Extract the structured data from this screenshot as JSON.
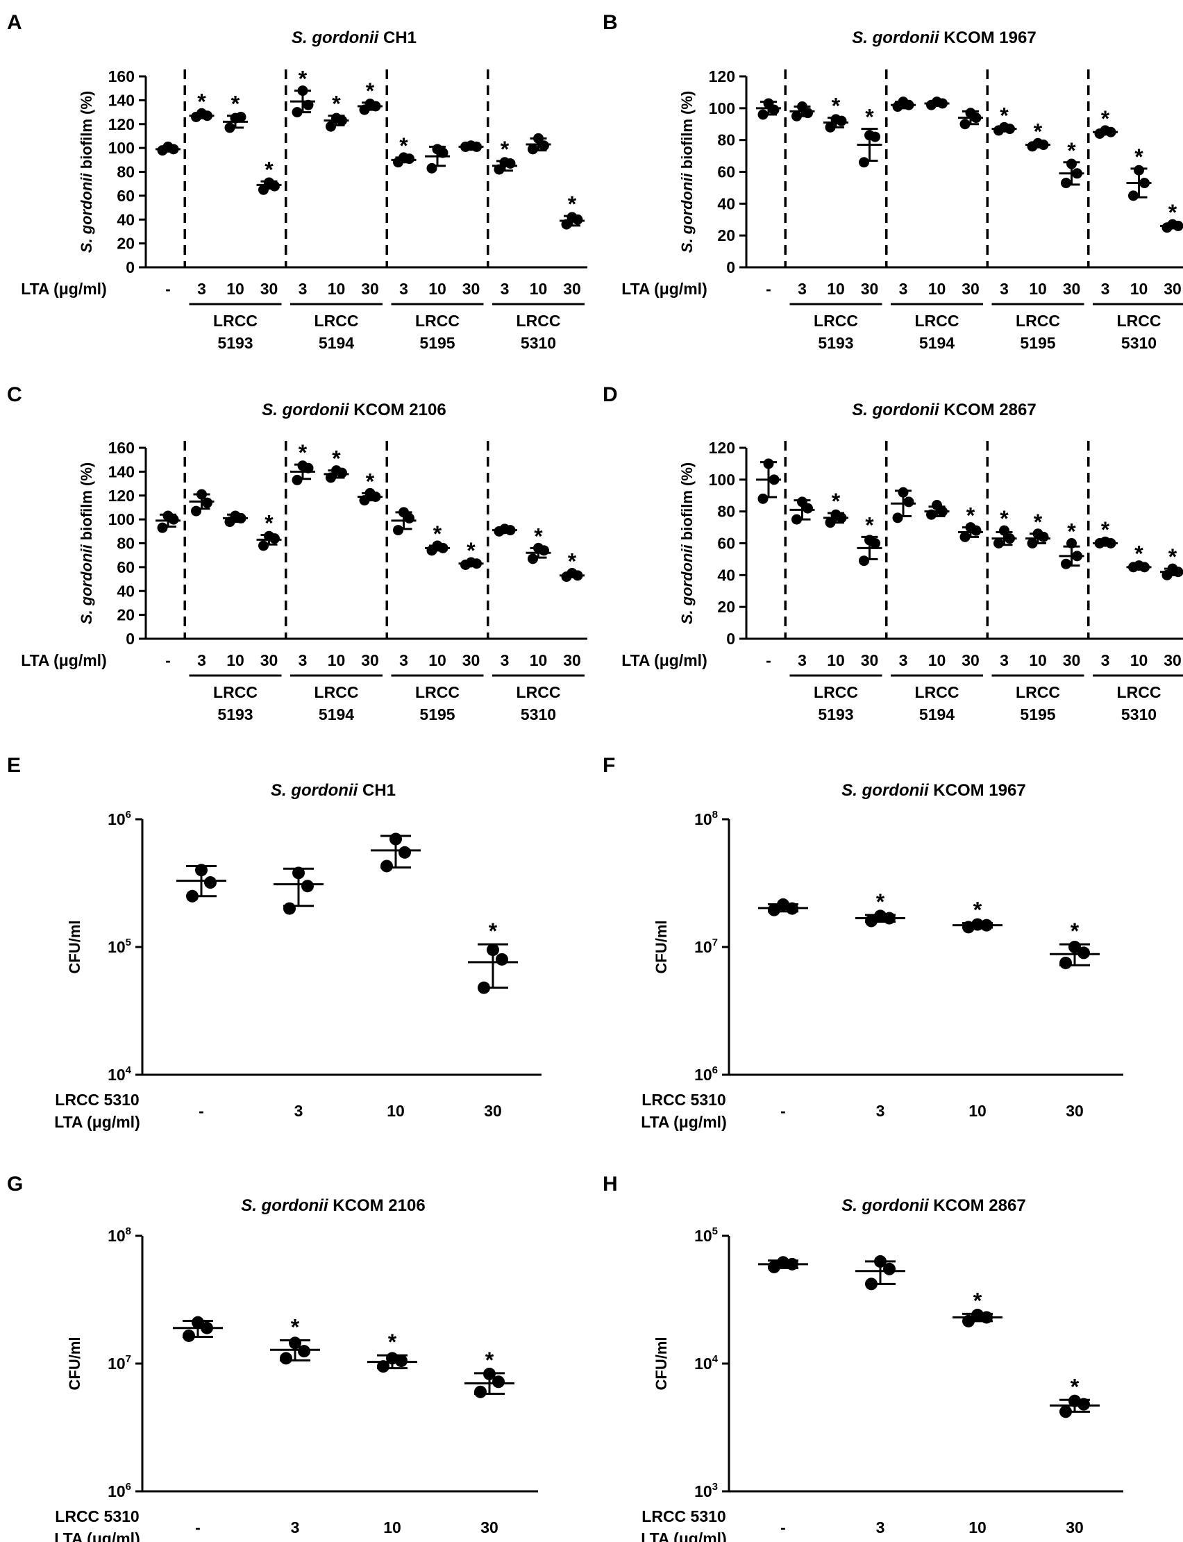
{
  "chart_data": [
    {
      "id": "A",
      "type": "scatter",
      "scale": "linear",
      "title_italic": "S. gordonii",
      "title_rest": " CH1",
      "ylabel_italic": "S. gordonii",
      "ylabel_rest": " biofilm (%)",
      "ylim": [
        0,
        160
      ],
      "yticks": [
        "0",
        "20",
        "40",
        "60",
        "80",
        "100",
        "120",
        "140",
        "160"
      ],
      "xlabel": "LTA (μg/ml)",
      "categories": [
        "-",
        "3",
        "10",
        "30",
        "3",
        "10",
        "30",
        "3",
        "10",
        "30",
        "3",
        "10",
        "30"
      ],
      "groups": [
        {
          "l1": "LRCC",
          "l2": "5193"
        },
        {
          "l1": "LRCC",
          "l2": "5194"
        },
        {
          "l1": "LRCC",
          "l2": "5195"
        },
        {
          "l1": "LRCC",
          "l2": "5310"
        }
      ],
      "points": [
        [
          98,
          101,
          99
        ],
        [
          126,
          129,
          127
        ],
        [
          117,
          125,
          126
        ],
        [
          65,
          71,
          68
        ],
        [
          130,
          148,
          136
        ],
        [
          118,
          125,
          123
        ],
        [
          132,
          137,
          135
        ],
        [
          88,
          92,
          91
        ],
        [
          83,
          99,
          96
        ],
        [
          101,
          102,
          101
        ],
        [
          82,
          88,
          87
        ],
        [
          99,
          108,
          102
        ],
        [
          36,
          42,
          40
        ]
      ],
      "mean": [
        99,
        127,
        122,
        69,
        139,
        123,
        135,
        90,
        93,
        101,
        85,
        103,
        39
      ],
      "sd": [
        2,
        2,
        5,
        3,
        9,
        4,
        3,
        2,
        8,
        1,
        4,
        5,
        4
      ],
      "sig": [
        false,
        true,
        true,
        true,
        true,
        true,
        true,
        true,
        false,
        false,
        true,
        false,
        true
      ],
      "star": "*"
    },
    {
      "id": "B",
      "type": "scatter",
      "scale": "linear",
      "title_italic": "S. gordonii",
      "title_rest": " KCOM 1967",
      "ylabel_italic": "S. gordonii",
      "ylabel_rest": " biofilm (%)",
      "ylim": [
        0,
        120
      ],
      "yticks": [
        "0",
        "20",
        "40",
        "60",
        "80",
        "100",
        "120"
      ],
      "xlabel": "LTA (μg/ml)",
      "categories": [
        "-",
        "3",
        "10",
        "30",
        "3",
        "10",
        "30",
        "3",
        "10",
        "30",
        "3",
        "10",
        "30"
      ],
      "groups": [
        {
          "l1": "LRCC",
          "l2": "5193"
        },
        {
          "l1": "LRCC",
          "l2": "5194"
        },
        {
          "l1": "LRCC",
          "l2": "5195"
        },
        {
          "l1": "LRCC",
          "l2": "5310"
        }
      ],
      "points": [
        [
          96,
          103,
          99
        ],
        [
          95,
          101,
          97
        ],
        [
          88,
          93,
          92
        ],
        [
          66,
          83,
          82
        ],
        [
          101,
          104,
          102
        ],
        [
          102,
          104,
          103
        ],
        [
          90,
          97,
          94
        ],
        [
          86,
          88,
          87
        ],
        [
          76,
          78,
          77
        ],
        [
          53,
          65,
          59
        ],
        [
          84,
          86,
          85
        ],
        [
          45,
          61,
          53
        ],
        [
          25,
          27,
          26
        ]
      ],
      "mean": [
        100,
        98,
        91,
        77,
        102,
        103,
        94,
        87,
        77,
        59,
        85,
        53,
        26
      ],
      "sd": [
        4,
        3,
        3,
        10,
        2,
        1,
        4,
        1,
        1,
        7,
        1,
        9,
        1
      ],
      "sig": [
        false,
        false,
        true,
        true,
        false,
        false,
        false,
        true,
        true,
        true,
        true,
        true,
        true
      ],
      "star": "*"
    },
    {
      "id": "C",
      "type": "scatter",
      "scale": "linear",
      "title_italic": "S. gordonii",
      "title_rest": " KCOM 2106",
      "ylabel_italic": "S. gordonii",
      "ylabel_rest": " biofilm (%)",
      "ylim": [
        0,
        160
      ],
      "yticks": [
        "0",
        "20",
        "40",
        "60",
        "80",
        "100",
        "120",
        "140",
        "160"
      ],
      "xlabel": "LTA (μg/ml)",
      "categories": [
        "-",
        "3",
        "10",
        "30",
        "3",
        "10",
        "30",
        "3",
        "10",
        "30",
        "3",
        "10",
        "30"
      ],
      "groups": [
        {
          "l1": "LRCC",
          "l2": "5193"
        },
        {
          "l1": "LRCC",
          "l2": "5194"
        },
        {
          "l1": "LRCC",
          "l2": "5195"
        },
        {
          "l1": "LRCC",
          "l2": "5310"
        }
      ],
      "points": [
        [
          93,
          103,
          100
        ],
        [
          107,
          121,
          114
        ],
        [
          98,
          103,
          101
        ],
        [
          78,
          86,
          84
        ],
        [
          133,
          145,
          143
        ],
        [
          135,
          141,
          139
        ],
        [
          116,
          122,
          119
        ],
        [
          91,
          106,
          101
        ],
        [
          74,
          78,
          76
        ],
        [
          62,
          64,
          63
        ],
        [
          90,
          92,
          91
        ],
        [
          67,
          76,
          74
        ],
        [
          52,
          55,
          53
        ]
      ],
      "mean": [
        99,
        115,
        101,
        83,
        140,
        138,
        119,
        99,
        76,
        63,
        91,
        72,
        53
      ],
      "sd": [
        5,
        6,
        3,
        4,
        6,
        3,
        3,
        7,
        2,
        1,
        1,
        4,
        1
      ],
      "sig": [
        false,
        false,
        false,
        true,
        true,
        true,
        true,
        false,
        true,
        true,
        false,
        true,
        true
      ],
      "star": "*"
    },
    {
      "id": "D",
      "type": "scatter",
      "scale": "linear",
      "title_italic": "S. gordonii",
      "title_rest": " KCOM 2867",
      "ylabel_italic": "S. gordonii",
      "ylabel_rest": " biofilm (%)",
      "ylim": [
        0,
        120
      ],
      "yticks": [
        "0",
        "20",
        "40",
        "60",
        "80",
        "100",
        "120"
      ],
      "xlabel": "LTA (μg/ml)",
      "categories": [
        "-",
        "3",
        "10",
        "30",
        "3",
        "10",
        "30",
        "3",
        "10",
        "30",
        "3",
        "10",
        "30"
      ],
      "groups": [
        {
          "l1": "LRCC",
          "l2": "5193"
        },
        {
          "l1": "LRCC",
          "l2": "5194"
        },
        {
          "l1": "LRCC",
          "l2": "5195"
        },
        {
          "l1": "LRCC",
          "l2": "5310"
        }
      ],
      "points": [
        [
          88,
          110,
          100
        ],
        [
          75,
          86,
          82
        ],
        [
          73,
          78,
          76
        ],
        [
          49,
          62,
          60
        ],
        [
          76,
          92,
          86
        ],
        [
          78,
          84,
          80
        ],
        [
          64,
          70,
          68
        ],
        [
          60,
          68,
          63
        ],
        [
          60,
          66,
          64
        ],
        [
          47,
          60,
          52
        ],
        [
          60,
          61,
          60
        ],
        [
          45,
          46,
          45
        ],
        [
          40,
          44,
          42
        ]
      ],
      "mean": [
        100,
        81,
        76,
        57,
        85,
        80,
        67,
        63,
        63,
        52,
        60,
        45,
        42
      ],
      "sd": [
        11,
        6,
        3,
        7,
        8,
        3,
        3,
        4,
        3,
        6,
        1,
        1,
        2
      ],
      "sig": [
        false,
        false,
        true,
        true,
        false,
        false,
        true,
        true,
        true,
        true,
        true,
        true,
        true
      ],
      "star": "*"
    },
    {
      "id": "E",
      "type": "scatter",
      "scale": "log",
      "title_italic": "S. gordonii",
      "title_rest": " CH1",
      "ylabel": "CFU/ml",
      "yexp": [
        4,
        6
      ],
      "ytick_base": "10",
      "ytick_exps": [
        "4",
        "5",
        "6"
      ],
      "xlabel_line1": "LRCC 5310",
      "xlabel_line2": "LTA (μg/ml)",
      "categories": [
        "-",
        "3",
        "10",
        "30"
      ],
      "points": [
        [
          250000,
          400000,
          320000
        ],
        [
          200000,
          380000,
          300000
        ],
        [
          430000,
          700000,
          550000
        ],
        [
          48000,
          95000,
          80000
        ]
      ],
      "mean": [
        330000,
        310000,
        570000,
        76000
      ],
      "err_lo": [
        250000,
        210000,
        420000,
        48000
      ],
      "err_hi": [
        430000,
        410000,
        740000,
        105000
      ],
      "sig": [
        false,
        false,
        false,
        true
      ],
      "star": "*"
    },
    {
      "id": "F",
      "type": "scatter",
      "scale": "log",
      "title_italic": "S. gordonii",
      "title_rest": " KCOM 1967",
      "ylabel": "CFU/ml",
      "yexp": [
        6,
        8
      ],
      "ytick_base": "10",
      "ytick_exps": [
        "6",
        "7",
        "8"
      ],
      "xlabel_line1": "LRCC 5310",
      "xlabel_line2": "LTA (μg/ml)",
      "categories": [
        "-",
        "3",
        "10",
        "30"
      ],
      "points": [
        [
          19500000,
          21500000,
          20000000
        ],
        [
          16000000,
          17500000,
          16800000
        ],
        [
          14300000,
          15000000,
          14800000
        ],
        [
          7500000,
          10000000,
          9000000
        ]
      ],
      "mean": [
        20200000,
        16800000,
        14800000,
        8800000
      ],
      "err_lo": [
        19000000,
        15800000,
        14200000,
        7200000
      ],
      "err_hi": [
        21600000,
        17800000,
        15400000,
        10500000
      ],
      "sig": [
        false,
        true,
        true,
        true
      ],
      "star": "*"
    },
    {
      "id": "G",
      "type": "scatter",
      "scale": "log",
      "title_italic": "S. gordonii",
      "title_rest": " KCOM 2106",
      "ylabel": "CFU/ml",
      "yexp": [
        6,
        8
      ],
      "ytick_base": "10",
      "ytick_exps": [
        "6",
        "7",
        "8"
      ],
      "xlabel_line1": "LRCC 5310",
      "xlabel_line2": "LTA (μg/ml)",
      "categories": [
        "-",
        "3",
        "10",
        "30"
      ],
      "points": [
        [
          16500000,
          21000000,
          19000000
        ],
        [
          11000000,
          14500000,
          12500000
        ],
        [
          9500000,
          11000000,
          10500000
        ],
        [
          6000000,
          8300000,
          7200000
        ]
      ],
      "mean": [
        19000000,
        12800000,
        10300000,
        7000000
      ],
      "err_lo": [
        16200000,
        10600000,
        9200000,
        5800000
      ],
      "err_hi": [
        21600000,
        15200000,
        11600000,
        8400000
      ],
      "sig": [
        false,
        true,
        true,
        true
      ],
      "star": "*"
    },
    {
      "id": "H",
      "type": "scatter",
      "scale": "log",
      "title_italic": "S. gordonii",
      "title_rest": " KCOM 2867",
      "ylabel": "CFU/ml",
      "yexp": [
        3,
        5
      ],
      "ytick_base": "10",
      "ytick_exps": [
        "3",
        "4",
        "5"
      ],
      "xlabel_line1": "LRCC 5310",
      "xlabel_line2": "LTA (μg/ml)",
      "categories": [
        "-",
        "3",
        "10",
        "30"
      ],
      "points": [
        [
          57000,
          62000,
          60000
        ],
        [
          42000,
          63000,
          55000
        ],
        [
          21500,
          24000,
          23000
        ],
        [
          4200,
          5100,
          4800
        ]
      ],
      "mean": [
        60000,
        53000,
        23000,
        4700
      ],
      "err_lo": [
        56000,
        42000,
        21500,
        4200
      ],
      "err_hi": [
        64000,
        63000,
        24500,
        5200
      ],
      "sig": [
        false,
        false,
        true,
        true
      ],
      "star": "*"
    }
  ]
}
